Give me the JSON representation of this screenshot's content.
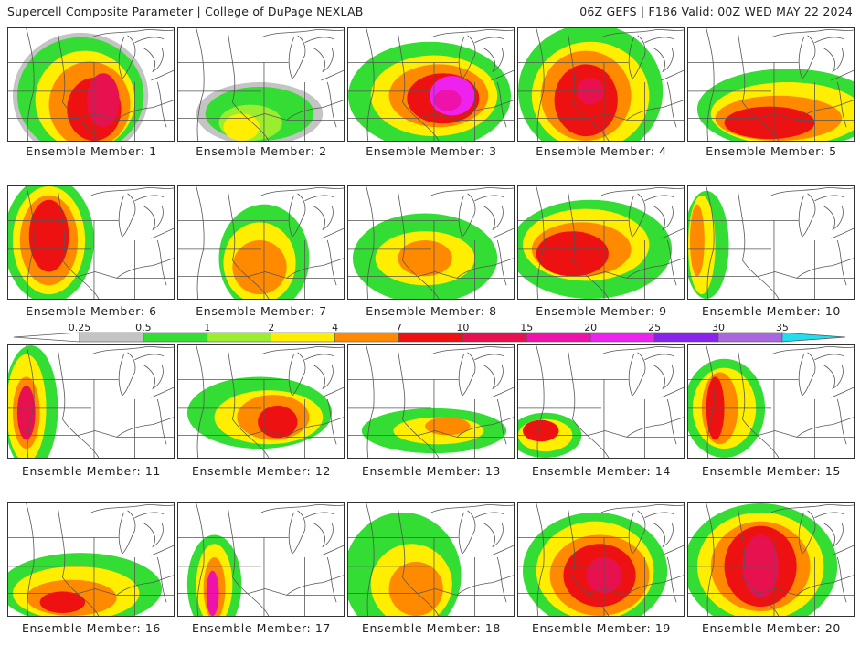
{
  "header": {
    "title_left": "Supercell Composite Parameter | College of DuPage NEXLAB",
    "title_right": "06Z GEFS | F186 Valid: 00Z WED MAY 22 2024"
  },
  "colorbar": {
    "labels": [
      "0.25",
      "0.5",
      "1",
      "2",
      "4",
      "7",
      "10",
      "15",
      "20",
      "25",
      "30",
      "35"
    ],
    "colors": [
      "#c4c4c4",
      "#33dd33",
      "#9aee2e",
      "#ffee00",
      "#ff8a00",
      "#ee1111",
      "#e8114f",
      "#ee11aa",
      "#ee22ee",
      "#8a22ee",
      "#aa66dd",
      "#22ddee"
    ]
  },
  "members": [
    "Ensemble Member: 1",
    "Ensemble Member: 2",
    "Ensemble Member: 3",
    "Ensemble Member: 4",
    "Ensemble Member: 5",
    "Ensemble Member: 6",
    "Ensemble Member: 7",
    "Ensemble Member: 8",
    "Ensemble Member: 9",
    "Ensemble Member: 10",
    "Ensemble Member: 11",
    "Ensemble Member: 12",
    "Ensemble Member: 13",
    "Ensemble Member: 14",
    "Ensemble Member: 15",
    "Ensemble Member: 16",
    "Ensemble Member: 17",
    "Ensemble Member: 18",
    "Ensemble Member: 19",
    "Ensemble Member: 20"
  ]
}
